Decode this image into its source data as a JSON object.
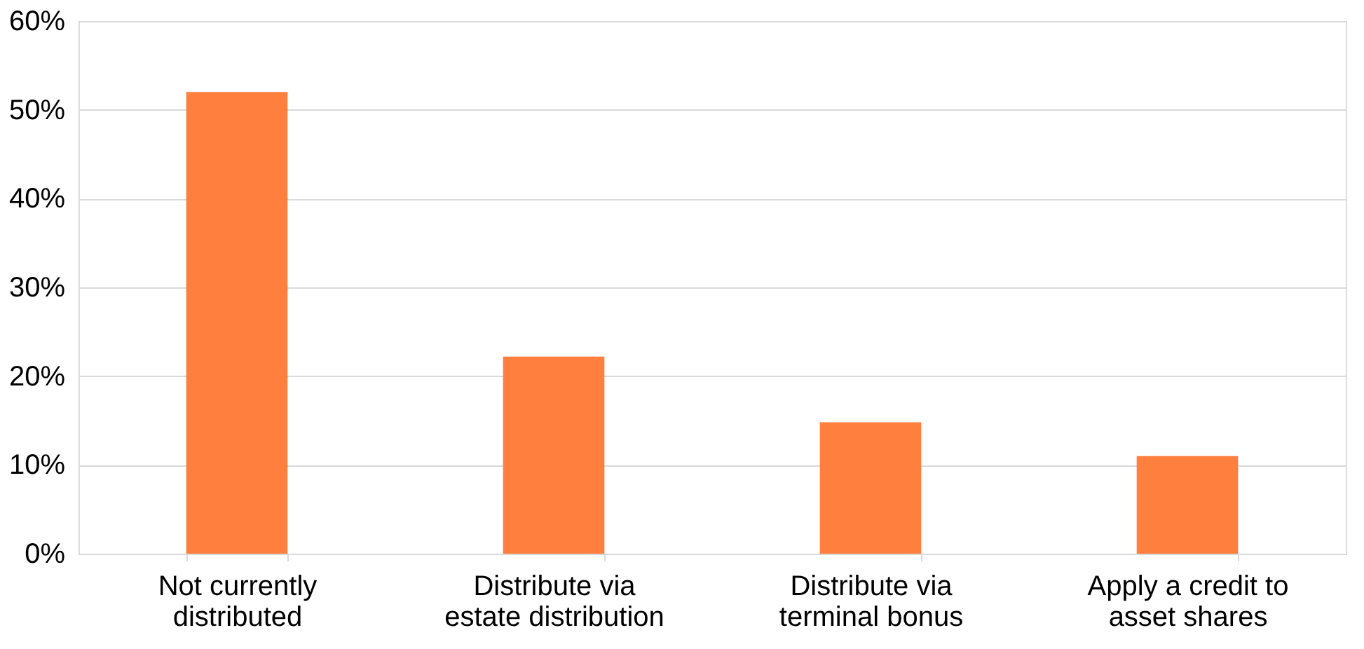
{
  "chart_data": {
    "type": "bar",
    "categories": [
      "Not currently distributed",
      "Distribute via estate distribution",
      "Distribute via terminal bonus",
      "Apply a credit to asset shares"
    ],
    "values": [
      52.0,
      22.2,
      14.8,
      11.0
    ],
    "color": "#ff7f3f",
    "ylim": [
      0,
      60
    ],
    "yticks": [
      {
        "value": 0,
        "label": "0%"
      },
      {
        "value": 10,
        "label": "10%"
      },
      {
        "value": 20,
        "label": "20%"
      },
      {
        "value": 30,
        "label": "30%"
      },
      {
        "value": 40,
        "label": "40%"
      },
      {
        "value": 50,
        "label": "50%"
      },
      {
        "value": 60,
        "label": "60%"
      }
    ],
    "grid": "y"
  }
}
